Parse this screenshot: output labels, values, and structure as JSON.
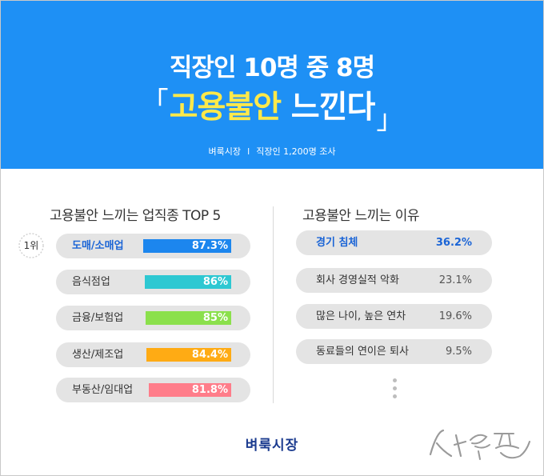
{
  "header": {
    "title_line1": "직장인 10명 중 8명",
    "title_em": "고용불안",
    "title_rest": "느낀다",
    "bracket_open": "「",
    "bracket_close": "」",
    "sub_source": "벼룩시장",
    "sub_sep": "I",
    "sub_survey": "직장인 1,200명 조사"
  },
  "left_title": "고용불안 느끼는 업직종 TOP 5",
  "right_title": "고용불안 느끼는 이유",
  "rank_badge": "1위",
  "chart_data": [
    {
      "type": "bar",
      "title": "고용불안 느끼는 업직종 TOP 5",
      "categories": [
        "도매/소매업",
        "음식점업",
        "금융/보험업",
        "생산/제조업",
        "부동산/임대업"
      ],
      "values": [
        87.3,
        86,
        85,
        84.4,
        81.8
      ],
      "value_labels": [
        "87.3%",
        "86%",
        "85%",
        "84.4%",
        "81.8%"
      ],
      "colors": [
        "#1c86ee",
        "#2ec8d2",
        "#8be04c",
        "#ffab14",
        "#ff7d8a"
      ],
      "ylim": [
        0,
        100
      ]
    },
    {
      "type": "table",
      "title": "고용불안 느끼는 이유",
      "categories": [
        "경기 침체",
        "회사 경영실적 악화",
        "많은 나이, 높은 연차",
        "동료들의 연이은 퇴사"
      ],
      "values": [
        36.2,
        23.1,
        19.6,
        9.5
      ],
      "value_labels": [
        "36.2%",
        "23.1%",
        "19.6%",
        "9.5%"
      ]
    }
  ],
  "footer_logo": "벼룩시장",
  "watermark": "사람의 풍경",
  "colors": {
    "header_bg": "#1e90f5",
    "highlight": "#1a64d6",
    "accent_yellow": "#ffe94a"
  }
}
